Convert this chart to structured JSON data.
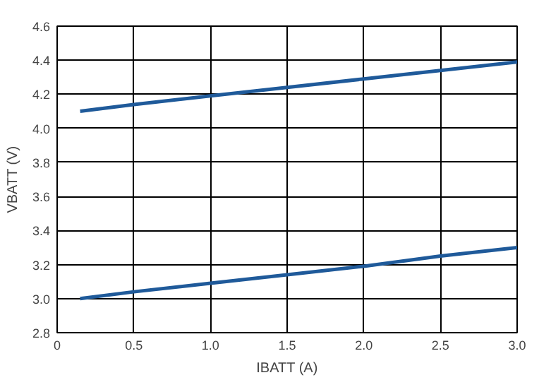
{
  "chart_data": {
    "type": "line",
    "xlabel": "IBATT (A)",
    "ylabel": "VBATT (V)",
    "xlim": [
      0,
      3
    ],
    "ylim": [
      2.8,
      4.6
    ],
    "xticks": [
      0,
      0.5,
      {
        "value": 1,
        "label": "1.0"
      },
      1.5,
      {
        "value": 2,
        "label": "2.0"
      },
      2.5,
      {
        "value": 3,
        "label": "3.0"
      }
    ],
    "yticks": [
      2.8,
      {
        "value": 3,
        "label": "3.0"
      },
      3.2,
      3.4,
      3.6,
      3.8,
      {
        "value": 4,
        "label": "4.0"
      },
      4.2,
      4.4,
      4.6
    ],
    "grid": true,
    "line_style": "solid",
    "series": [
      {
        "color": "#1f5a9a",
        "x": [
          0.15,
          0.5,
          1.0,
          1.5,
          2.0,
          2.5,
          3.0
        ],
        "values": [
          4.1,
          4.14,
          4.19,
          4.24,
          4.29,
          4.34,
          4.39
        ]
      },
      {
        "color": "#1f5a9a",
        "x": [
          0.15,
          0.5,
          1.0,
          1.5,
          2.0,
          2.5,
          3.0
        ],
        "values": [
          3.0,
          3.04,
          3.09,
          3.14,
          3.19,
          3.25,
          3.3
        ]
      }
    ]
  }
}
